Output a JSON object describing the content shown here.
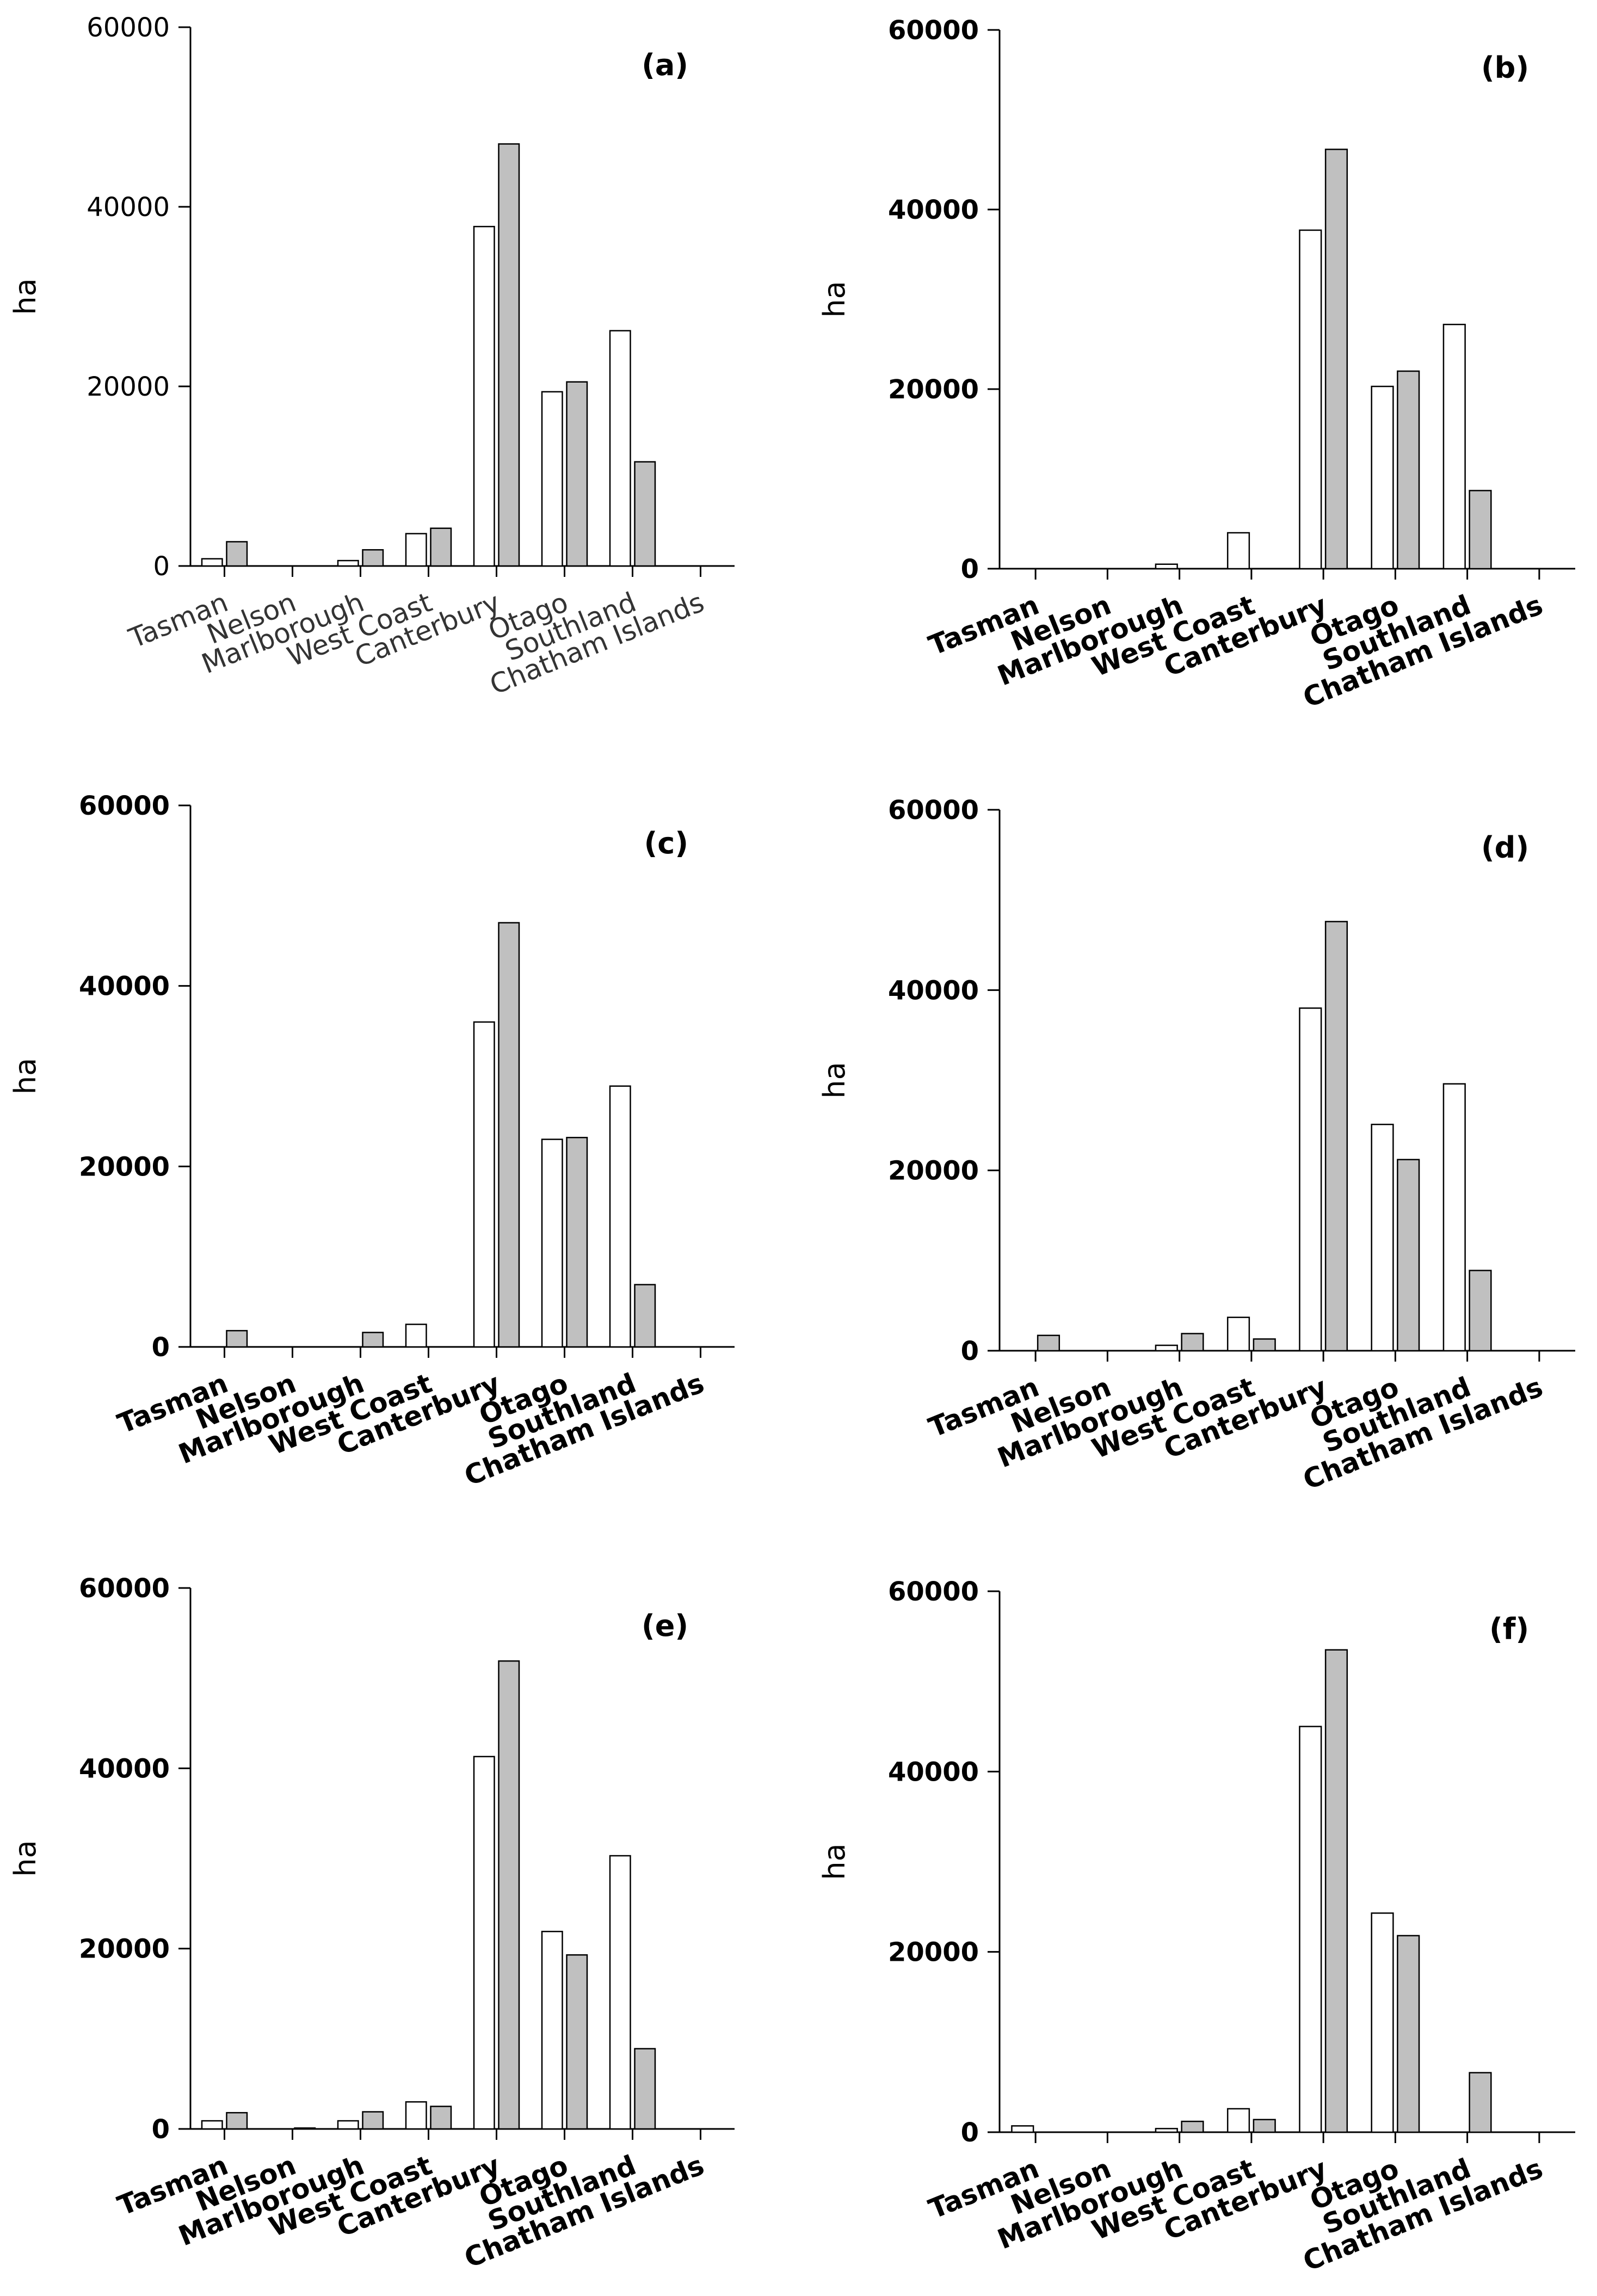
{
  "chart_data": [
    {
      "type": "bar",
      "panel": "(a)",
      "categories": [
        "Tasman",
        "Nelson",
        "Marlborough",
        "West Coast",
        "Canterbury",
        "Otago",
        "Southland",
        "Chatham Islands"
      ],
      "series": [
        {
          "name": "white",
          "color": "#ffffff",
          "values": [
            800,
            0,
            600,
            3600,
            37800,
            19400,
            26200,
            0
          ]
        },
        {
          "name": "grey",
          "color": "#c0c0c0",
          "values": [
            2700,
            0,
            1800,
            4200,
            47000,
            20500,
            11600,
            0
          ]
        }
      ],
      "ylabel": "ha",
      "ylim": [
        0,
        60000
      ],
      "yticks": [
        "0",
        "20000",
        "40000",
        "60000"
      ],
      "bold_tick_labels": false
    },
    {
      "type": "bar",
      "panel": "(b)",
      "categories": [
        "Tasman",
        "Nelson",
        "Marlborough",
        "West Coast",
        "Canterbury",
        "Otago",
        "Southland",
        "Chatham Islands"
      ],
      "series": [
        {
          "name": "white",
          "color": "#ffffff",
          "values": [
            0,
            0,
            500,
            4000,
            37700,
            20300,
            27200,
            0
          ]
        },
        {
          "name": "grey",
          "color": "#c0c0c0",
          "values": [
            0,
            0,
            0,
            0,
            46700,
            22000,
            8700,
            0
          ]
        }
      ],
      "ylabel": "ha",
      "ylim": [
        0,
        60000
      ],
      "yticks": [
        "0",
        "20000",
        "40000",
        "60000"
      ],
      "bold_tick_labels": true
    },
    {
      "type": "bar",
      "panel": "(c)",
      "categories": [
        "Tasman",
        "Nelson",
        "Marlborough",
        "West Coast",
        "Canterbury",
        "Otago",
        "Southland",
        "Chatham Islands"
      ],
      "series": [
        {
          "name": "white",
          "color": "#ffffff",
          "values": [
            0,
            0,
            0,
            2500,
            36000,
            23000,
            28900,
            0
          ]
        },
        {
          "name": "grey",
          "color": "#c0c0c0",
          "values": [
            1800,
            0,
            1600,
            0,
            47000,
            23200,
            6900,
            0
          ]
        }
      ],
      "ylabel": "ha",
      "ylim": [
        0,
        60000
      ],
      "yticks": [
        "0",
        "20000",
        "40000",
        "60000"
      ],
      "bold_tick_labels": true
    },
    {
      "type": "bar",
      "panel": "(d)",
      "categories": [
        "Tasman",
        "Nelson",
        "Marlborough",
        "West Coast",
        "Canterbury",
        "Otago",
        "Southland",
        "Chatham Islands"
      ],
      "series": [
        {
          "name": "white",
          "color": "#ffffff",
          "values": [
            0,
            0,
            600,
            3700,
            38000,
            25100,
            29600,
            0
          ]
        },
        {
          "name": "grey",
          "color": "#c0c0c0",
          "values": [
            1700,
            0,
            1900,
            1300,
            47600,
            21200,
            8900,
            0
          ]
        }
      ],
      "ylabel": "ha",
      "ylim": [
        0,
        60000
      ],
      "yticks": [
        "0",
        "20000",
        "40000",
        "60000"
      ],
      "bold_tick_labels": true
    },
    {
      "type": "bar",
      "panel": "(e)",
      "categories": [
        "Tasman",
        "Nelson",
        "Marlborough",
        "West Coast",
        "Canterbury",
        "Otago",
        "Southland",
        "Chatham Islands"
      ],
      "series": [
        {
          "name": "white",
          "color": "#ffffff",
          "values": [
            900,
            0,
            900,
            3000,
            41300,
            21900,
            30300,
            0
          ]
        },
        {
          "name": "grey",
          "color": "#c0c0c0",
          "values": [
            1800,
            100,
            1900,
            2500,
            51900,
            19300,
            8900,
            0
          ]
        }
      ],
      "ylabel": "ha",
      "ylim": [
        0,
        60000
      ],
      "yticks": [
        "0",
        "20000",
        "40000",
        "60000"
      ],
      "bold_tick_labels": true
    },
    {
      "type": "bar",
      "panel": "(f)",
      "categories": [
        "Tasman",
        "Nelson",
        "Marlborough",
        "West Coast",
        "Canterbury",
        "Otago",
        "Southland",
        "Chatham Islands"
      ],
      "series": [
        {
          "name": "white",
          "color": "#ffffff",
          "values": [
            700,
            0,
            400,
            2600,
            45000,
            24300,
            0,
            0
          ]
        },
        {
          "name": "grey",
          "color": "#c0c0c0",
          "values": [
            0,
            0,
            1200,
            1400,
            53500,
            21800,
            6600,
            0
          ]
        }
      ],
      "ylabel": "ha",
      "ylim": [
        0,
        60000
      ],
      "yticks": [
        "0",
        "20000",
        "40000",
        "60000"
      ],
      "bold_tick_labels": true
    }
  ]
}
